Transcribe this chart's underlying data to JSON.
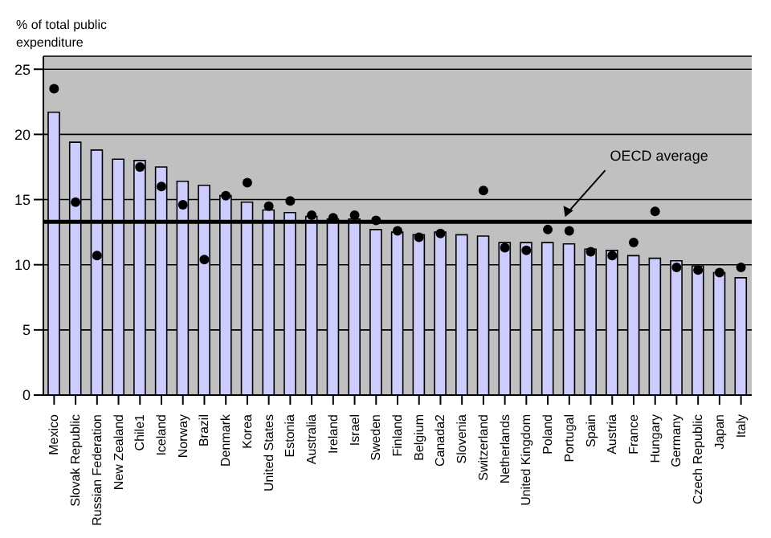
{
  "chart_data": {
    "type": "bar",
    "ylabel": "% of total public expenditure",
    "categories": [
      "Mexico",
      "Slovak Republic",
      "Russian Federation",
      "New Zealand",
      "Chile1",
      "Iceland",
      "Norway",
      "Brazil",
      "Denmark",
      "Korea",
      "United States",
      "Estonia",
      "Australia",
      "Ireland",
      "Israel",
      "Sweden",
      "Finland",
      "Belgium",
      "Canada2",
      "Slovenia",
      "Switzerland",
      "Netherlands",
      "United Kingdom",
      "Poland",
      "Portugal",
      "Spain",
      "Austria",
      "France",
      "Hungary",
      "Germany",
      "Czech Republic",
      "Japan",
      "Italy"
    ],
    "series": [
      {
        "color": "#ccccff",
        "values": [
          21.7,
          19.4,
          18.8,
          18.1,
          18.0,
          17.5,
          16.4,
          16.1,
          15.3,
          14.8,
          14.2,
          14.0,
          13.7,
          13.5,
          13.5,
          12.7,
          12.5,
          12.3,
          12.5,
          12.3,
          12.2,
          11.7,
          11.7,
          11.7,
          11.6,
          11.2,
          11.1,
          10.7,
          10.5,
          10.3,
          9.9,
          9.4,
          9.0
        ]
      },
      {
        "type": "scatter",
        "color": "#000000",
        "values": [
          23.5,
          14.8,
          10.7,
          null,
          17.5,
          16.0,
          14.6,
          10.4,
          15.3,
          16.3,
          14.5,
          14.9,
          13.8,
          13.6,
          13.8,
          13.4,
          12.6,
          12.1,
          12.4,
          null,
          15.7,
          11.3,
          11.1,
          12.7,
          12.6,
          11.0,
          10.7,
          11.7,
          14.1,
          9.8,
          9.6,
          9.4,
          9.8
        ]
      }
    ],
    "ylim": [
      0,
      26
    ],
    "yticks": [
      0,
      5,
      10,
      15,
      20,
      25
    ],
    "grid": "y",
    "marker": "circle",
    "ref_lines": [
      {
        "axis": "y",
        "value": 13.3,
        "label": "OECD average",
        "color": "#000000"
      }
    ]
  }
}
